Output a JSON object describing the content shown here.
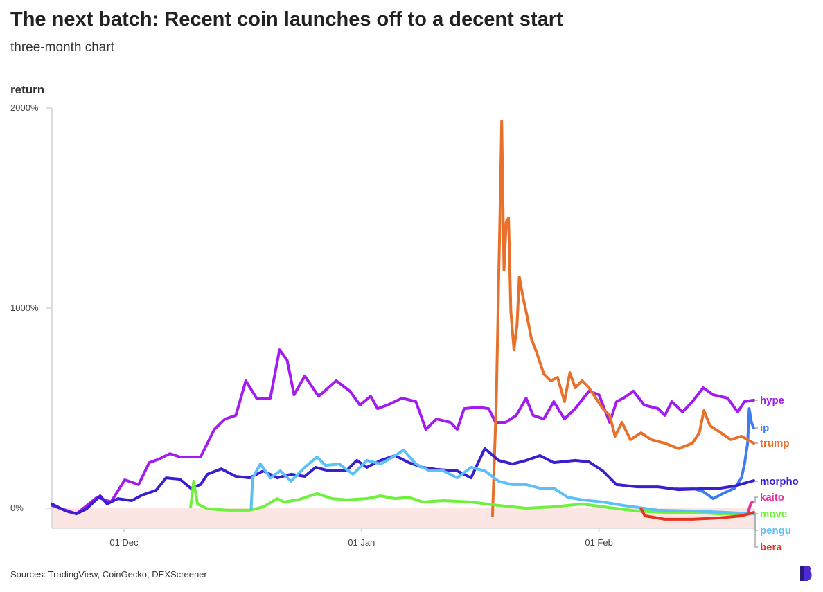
{
  "title": "The next batch: Recent coin launches off to a decent start",
  "subtitle": "three-month chart",
  "source": "Sources: TradingView, CoinGecko, DEXScreener",
  "chart_data": {
    "type": "line",
    "title": "The next batch: Recent coin launches off to a decent start",
    "subtitle": "three-month chart",
    "ylabel": "return",
    "xlabel": "",
    "x_units": "days since 01 Dec",
    "xlim": [
      -9.4,
      82.2
    ],
    "ylim": [
      -100,
      2000
    ],
    "negative_band": [
      -100,
      0
    ],
    "y_ticks": [
      {
        "value": 0,
        "label": "0%"
      },
      {
        "value": 1000,
        "label": "1000%"
      },
      {
        "value": 2000,
        "label": "2000%"
      }
    ],
    "x_ticks": [
      {
        "value": 0,
        "label": "01 Dec"
      },
      {
        "value": 31,
        "label": "01 Jan"
      },
      {
        "value": 62,
        "label": "01 Feb"
      }
    ],
    "grid": false,
    "legend": "right (end labels)",
    "series": [
      {
        "name": "hype",
        "color": "#a21cf0",
        "points": [
          [
            -9.4,
            14
          ],
          [
            -6.2,
            -28
          ],
          [
            -3.5,
            55
          ],
          [
            -1.7,
            31
          ],
          [
            0.1,
            142
          ],
          [
            1.9,
            118
          ],
          [
            3.3,
            228
          ],
          [
            4.6,
            246
          ],
          [
            6.0,
            273
          ],
          [
            7.3,
            256
          ],
          [
            10.0,
            256
          ],
          [
            11.8,
            394
          ],
          [
            13.2,
            446
          ],
          [
            14.6,
            464
          ],
          [
            15.9,
            637
          ],
          [
            17.3,
            550
          ],
          [
            19.1,
            550
          ],
          [
            20.3,
            792
          ],
          [
            21.3,
            740
          ],
          [
            22.2,
            567
          ],
          [
            23.6,
            661
          ],
          [
            25.4,
            560
          ],
          [
            27.7,
            637
          ],
          [
            29.5,
            585
          ],
          [
            30.8,
            516
          ],
          [
            32.2,
            560
          ],
          [
            33.1,
            498
          ],
          [
            34.4,
            516
          ],
          [
            36.3,
            550
          ],
          [
            38.1,
            533
          ],
          [
            39.4,
            394
          ],
          [
            40.8,
            446
          ],
          [
            42.6,
            429
          ],
          [
            43.5,
            394
          ],
          [
            44.4,
            498
          ],
          [
            46.2,
            505
          ],
          [
            47.6,
            498
          ],
          [
            48.5,
            429
          ],
          [
            49.8,
            429
          ],
          [
            51.2,
            464
          ],
          [
            52.5,
            550
          ],
          [
            53.4,
            464
          ],
          [
            54.8,
            446
          ],
          [
            56.1,
            533
          ],
          [
            57.5,
            446
          ],
          [
            58.9,
            498
          ],
          [
            60.7,
            585
          ],
          [
            62.0,
            567
          ],
          [
            63.4,
            429
          ],
          [
            64.3,
            533
          ],
          [
            65.2,
            550
          ],
          [
            66.5,
            585
          ],
          [
            67.9,
            516
          ],
          [
            69.7,
            498
          ],
          [
            70.6,
            464
          ],
          [
            71.5,
            533
          ],
          [
            72.9,
            481
          ],
          [
            74.2,
            533
          ],
          [
            75.6,
            602
          ],
          [
            76.9,
            567
          ],
          [
            78.8,
            550
          ],
          [
            80.1,
            481
          ],
          [
            81.0,
            533
          ],
          [
            82.2,
            540
          ]
        ]
      },
      {
        "name": "ip",
        "color": "#3f7cf0",
        "points": [
          [
            72.0,
            97
          ],
          [
            74.2,
            100
          ],
          [
            75.6,
            83
          ],
          [
            76.9,
            48
          ],
          [
            78.3,
            76
          ],
          [
            79.7,
            100
          ],
          [
            80.6,
            152
          ],
          [
            81.0,
            221
          ],
          [
            81.4,
            325
          ],
          [
            81.6,
            498
          ],
          [
            81.9,
            429
          ],
          [
            82.2,
            401
          ]
        ]
      },
      {
        "name": "trump",
        "color": "#e8702a",
        "points": [
          [
            48.1,
            -38
          ],
          [
            48.6,
            533
          ],
          [
            49.1,
            1502
          ],
          [
            49.3,
            1934
          ],
          [
            49.6,
            1190
          ],
          [
            49.9,
            1432
          ],
          [
            50.2,
            1450
          ],
          [
            50.5,
            983
          ],
          [
            50.9,
            792
          ],
          [
            51.3,
            913
          ],
          [
            51.6,
            1156
          ],
          [
            52.1,
            1052
          ],
          [
            52.5,
            983
          ],
          [
            53.2,
            844
          ],
          [
            53.9,
            775
          ],
          [
            54.8,
            671
          ],
          [
            55.7,
            637
          ],
          [
            56.6,
            654
          ],
          [
            57.5,
            533
          ],
          [
            58.2,
            678
          ],
          [
            58.9,
            602
          ],
          [
            59.8,
            637
          ],
          [
            60.7,
            602
          ],
          [
            61.6,
            550
          ],
          [
            62.5,
            498
          ],
          [
            63.4,
            464
          ],
          [
            64.1,
            360
          ],
          [
            65.0,
            429
          ],
          [
            66.1,
            343
          ],
          [
            67.5,
            377
          ],
          [
            68.8,
            343
          ],
          [
            70.6,
            325
          ],
          [
            72.4,
            298
          ],
          [
            74.2,
            325
          ],
          [
            75.1,
            377
          ],
          [
            75.7,
            488
          ],
          [
            76.5,
            412
          ],
          [
            77.9,
            377
          ],
          [
            79.2,
            343
          ],
          [
            80.6,
            360
          ],
          [
            82.2,
            325
          ]
        ]
      },
      {
        "name": "morpho",
        "color": "#3a1fd0",
        "points": [
          [
            -9.4,
            21
          ],
          [
            -7.6,
            -14
          ],
          [
            -6.2,
            -28
          ],
          [
            -4.9,
            -3
          ],
          [
            -3.1,
            62
          ],
          [
            -2.2,
            21
          ],
          [
            -0.8,
            48
          ],
          [
            1.0,
            38
          ],
          [
            2.4,
            66
          ],
          [
            4.2,
            90
          ],
          [
            5.5,
            152
          ],
          [
            7.3,
            145
          ],
          [
            8.7,
            100
          ],
          [
            10.0,
            118
          ],
          [
            10.9,
            170
          ],
          [
            12.7,
            197
          ],
          [
            14.6,
            159
          ],
          [
            16.4,
            152
          ],
          [
            18.2,
            187
          ],
          [
            20.0,
            152
          ],
          [
            21.8,
            170
          ],
          [
            23.6,
            159
          ],
          [
            25.0,
            204
          ],
          [
            26.8,
            187
          ],
          [
            29.0,
            187
          ],
          [
            30.4,
            239
          ],
          [
            31.7,
            204
          ],
          [
            33.5,
            239
          ],
          [
            35.4,
            263
          ],
          [
            37.2,
            228
          ],
          [
            39.0,
            204
          ],
          [
            40.8,
            194
          ],
          [
            43.5,
            187
          ],
          [
            45.3,
            152
          ],
          [
            47.1,
            298
          ],
          [
            48.9,
            239
          ],
          [
            50.7,
            221
          ],
          [
            52.5,
            239
          ],
          [
            54.3,
            263
          ],
          [
            56.1,
            228
          ],
          [
            58.9,
            239
          ],
          [
            60.7,
            232
          ],
          [
            62.5,
            187
          ],
          [
            64.3,
            118
          ],
          [
            67.0,
            107
          ],
          [
            69.7,
            107
          ],
          [
            72.4,
            93
          ],
          [
            75.1,
            97
          ],
          [
            77.8,
            100
          ],
          [
            79.7,
            111
          ],
          [
            82.2,
            138
          ]
        ]
      },
      {
        "name": "kaito",
        "color": "#e8309f",
        "points": [
          [
            81.5,
            -14
          ],
          [
            81.8,
            21
          ],
          [
            82.0,
            31
          ]
        ]
      },
      {
        "name": "move",
        "color": "#6ef03c",
        "points": [
          [
            8.7,
            7
          ],
          [
            9.1,
            135
          ],
          [
            9.6,
            21
          ],
          [
            10.9,
            -3
          ],
          [
            13.6,
            -10
          ],
          [
            16.4,
            -10
          ],
          [
            18.2,
            7
          ],
          [
            20.0,
            48
          ],
          [
            20.9,
            31
          ],
          [
            22.7,
            42
          ],
          [
            25.2,
            73
          ],
          [
            27.2,
            48
          ],
          [
            29.0,
            42
          ],
          [
            31.7,
            48
          ],
          [
            33.5,
            62
          ],
          [
            35.4,
            48
          ],
          [
            37.2,
            55
          ],
          [
            39.0,
            31
          ],
          [
            41.7,
            38
          ],
          [
            45.3,
            31
          ],
          [
            48.9,
            14
          ],
          [
            52.5,
            0
          ],
          [
            56.1,
            7
          ],
          [
            59.8,
            21
          ],
          [
            63.4,
            3
          ],
          [
            67.0,
            -14
          ],
          [
            70.6,
            -21
          ],
          [
            74.2,
            -21
          ],
          [
            77.8,
            -28
          ],
          [
            82.2,
            -28
          ]
        ]
      },
      {
        "name": "pengu",
        "color": "#5bc0f8",
        "points": [
          [
            16.6,
            -3
          ],
          [
            16.8,
            152
          ],
          [
            17.8,
            221
          ],
          [
            19.1,
            152
          ],
          [
            20.4,
            187
          ],
          [
            21.8,
            135
          ],
          [
            23.6,
            204
          ],
          [
            25.2,
            256
          ],
          [
            26.3,
            214
          ],
          [
            28.1,
            221
          ],
          [
            29.9,
            170
          ],
          [
            31.7,
            239
          ],
          [
            33.5,
            221
          ],
          [
            35.4,
            263
          ],
          [
            36.5,
            291
          ],
          [
            38.1,
            221
          ],
          [
            39.9,
            187
          ],
          [
            41.7,
            187
          ],
          [
            43.5,
            152
          ],
          [
            45.3,
            204
          ],
          [
            47.1,
            187
          ],
          [
            48.9,
            135
          ],
          [
            50.7,
            118
          ],
          [
            52.5,
            118
          ],
          [
            54.3,
            100
          ],
          [
            56.1,
            100
          ],
          [
            57.9,
            55
          ],
          [
            59.8,
            42
          ],
          [
            62.5,
            31
          ],
          [
            65.2,
            14
          ],
          [
            69.7,
            -10
          ],
          [
            74.2,
            -14
          ],
          [
            78.8,
            -21
          ],
          [
            82.2,
            -28
          ]
        ]
      },
      {
        "name": "bera",
        "color": "#e8321e",
        "points": [
          [
            67.5,
            -3
          ],
          [
            68.0,
            -38
          ],
          [
            70.6,
            -55
          ],
          [
            74.2,
            -55
          ],
          [
            77.8,
            -48
          ],
          [
            80.6,
            -38
          ],
          [
            82.2,
            -21
          ]
        ]
      }
    ]
  }
}
